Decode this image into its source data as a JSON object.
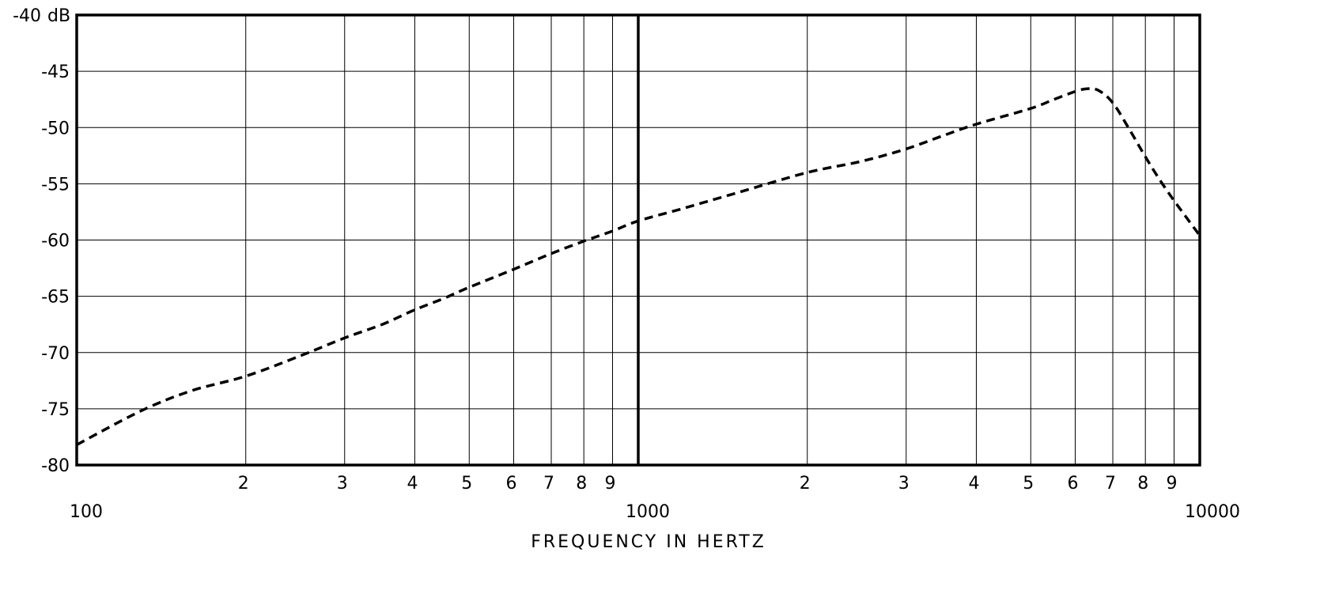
{
  "chart_data": {
    "type": "line",
    "x_scale": "log",
    "xlim": [
      100,
      10000
    ],
    "ylim": [
      -80,
      -40
    ],
    "xlabel": "FREQUENCY IN HERTZ",
    "y_unit": "dB",
    "grid": true,
    "y_ticks": [
      {
        "value": -40,
        "label": "-40"
      },
      {
        "value": -45,
        "label": "-45"
      },
      {
        "value": -50,
        "label": "-50"
      },
      {
        "value": -55,
        "label": "-55"
      },
      {
        "value": -60,
        "label": "-60"
      },
      {
        "value": -65,
        "label": "-65"
      },
      {
        "value": -70,
        "label": "-70"
      },
      {
        "value": -75,
        "label": "-75"
      },
      {
        "value": -80,
        "label": "-80"
      }
    ],
    "x_major_ticks": [
      {
        "value": 100,
        "label": "100"
      },
      {
        "value": 1000,
        "label": "1000"
      },
      {
        "value": 10000,
        "label": "10000"
      }
    ],
    "x_minor_ticks": [
      {
        "value": 200,
        "label": "2"
      },
      {
        "value": 300,
        "label": "3"
      },
      {
        "value": 400,
        "label": "4"
      },
      {
        "value": 500,
        "label": "5"
      },
      {
        "value": 600,
        "label": "6"
      },
      {
        "value": 700,
        "label": "7"
      },
      {
        "value": 800,
        "label": "8"
      },
      {
        "value": 900,
        "label": "9"
      },
      {
        "value": 2000,
        "label": "2"
      },
      {
        "value": 3000,
        "label": "3"
      },
      {
        "value": 4000,
        "label": "4"
      },
      {
        "value": 5000,
        "label": "5"
      },
      {
        "value": 6000,
        "label": "6"
      },
      {
        "value": 7000,
        "label": "7"
      },
      {
        "value": 8000,
        "label": "8"
      },
      {
        "value": 9000,
        "label": "9"
      }
    ],
    "series": [
      {
        "line_style": "dashed",
        "color": "#000000",
        "points": [
          {
            "x": 100,
            "y": -78.2
          },
          {
            "x": 130,
            "y": -75.2
          },
          {
            "x": 160,
            "y": -73.4
          },
          {
            "x": 200,
            "y": -72.1
          },
          {
            "x": 250,
            "y": -70.3
          },
          {
            "x": 300,
            "y": -68.7
          },
          {
            "x": 350,
            "y": -67.5
          },
          {
            "x": 400,
            "y": -66.2
          },
          {
            "x": 450,
            "y": -65.2
          },
          {
            "x": 500,
            "y": -64.2
          },
          {
            "x": 600,
            "y": -62.6
          },
          {
            "x": 700,
            "y": -61.2
          },
          {
            "x": 800,
            "y": -60.1
          },
          {
            "x": 900,
            "y": -59.2
          },
          {
            "x": 1000,
            "y": -58.3
          },
          {
            "x": 1200,
            "y": -57.2
          },
          {
            "x": 1500,
            "y": -55.8
          },
          {
            "x": 2000,
            "y": -54.0
          },
          {
            "x": 2500,
            "y": -53.0
          },
          {
            "x": 3000,
            "y": -51.9
          },
          {
            "x": 3500,
            "y": -50.7
          },
          {
            "x": 4000,
            "y": -49.7
          },
          {
            "x": 5000,
            "y": -48.3
          },
          {
            "x": 5500,
            "y": -47.5
          },
          {
            "x": 6000,
            "y": -46.8
          },
          {
            "x": 6300,
            "y": -46.55
          },
          {
            "x": 6600,
            "y": -46.7
          },
          {
            "x": 7000,
            "y": -47.8
          },
          {
            "x": 7500,
            "y": -50.2
          },
          {
            "x": 8000,
            "y": -52.6
          },
          {
            "x": 8500,
            "y": -54.7
          },
          {
            "x": 9000,
            "y": -56.5
          },
          {
            "x": 9500,
            "y": -58.1
          },
          {
            "x": 10000,
            "y": -59.6
          }
        ]
      }
    ]
  }
}
